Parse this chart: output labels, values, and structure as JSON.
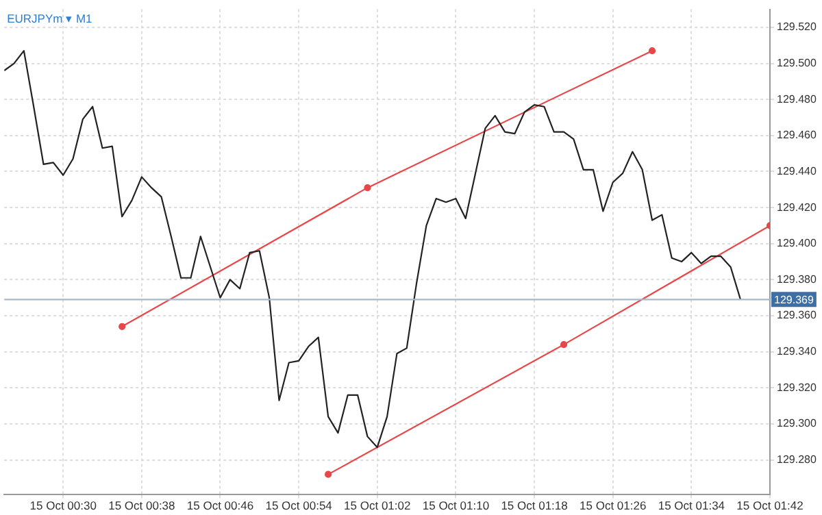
{
  "chart_data": {
    "type": "line",
    "title": "EURJPYm ▾ M1",
    "x": [
      "--10-15T00:24",
      "--10-15T00:25",
      "--10-15T00:26",
      "--10-15T00:27",
      "--10-15T00:28",
      "--10-15T00:29",
      "--10-15T00:30",
      "--10-15T00:31",
      "--10-15T00:32",
      "--10-15T00:33",
      "--10-15T00:34",
      "--10-15T00:35",
      "--10-15T00:36",
      "--10-15T00:37",
      "--10-15T00:38",
      "--10-15T00:39",
      "--10-15T00:40",
      "--10-15T00:41",
      "--10-15T00:42",
      "--10-15T00:43",
      "--10-15T00:44",
      "--10-15T00:45",
      "--10-15T00:46",
      "--10-15T00:47",
      "--10-15T00:48",
      "--10-15T00:49",
      "--10-15T00:50",
      "--10-15T00:51",
      "--10-15T00:52",
      "--10-15T00:53",
      "--10-15T00:54",
      "--10-15T00:55",
      "--10-15T00:56",
      "--10-15T00:57",
      "--10-15T00:58",
      "--10-15T00:59",
      "--10-15T01:00",
      "--10-15T01:01",
      "--10-15T01:02",
      "--10-15T01:03",
      "--10-15T01:04",
      "--10-15T01:05",
      "--10-15T01:06",
      "--10-15T01:07",
      "--10-15T01:08",
      "--10-15T01:09",
      "--10-15T01:10",
      "--10-15T01:11",
      "--10-15T01:12",
      "--10-15T01:13",
      "--10-15T01:14",
      "--10-15T01:15",
      "--10-15T01:16",
      "--10-15T01:17",
      "--10-15T01:18",
      "--10-15T01:19",
      "--10-15T01:20",
      "--10-15T01:21",
      "--10-15T01:22",
      "--10-15T01:23",
      "--10-15T01:24",
      "--10-15T01:25",
      "--10-15T01:26",
      "--10-15T01:27",
      "--10-15T01:28",
      "--10-15T01:29",
      "--10-15T01:30",
      "--10-15T01:31",
      "--10-15T01:32",
      "--10-15T01:33",
      "--10-15T01:34",
      "--10-15T01:35",
      "--10-15T01:36",
      "--10-15T01:37",
      "--10-15T01:38",
      "--10-15T01:39"
    ],
    "series": [
      {
        "color": "#222222",
        "values": [
          129.496,
          129.5,
          129.507,
          129.476,
          129.444,
          129.445,
          129.438,
          129.447,
          129.469,
          129.476,
          129.453,
          129.454,
          129.415,
          129.424,
          129.437,
          129.431,
          129.426,
          129.404,
          129.381,
          129.381,
          129.404,
          129.387,
          129.37,
          129.38,
          129.375,
          129.395,
          129.396,
          129.37,
          129.313,
          129.334,
          129.335,
          129.343,
          129.348,
          129.304,
          129.295,
          129.316,
          129.316,
          129.293,
          129.287,
          129.304,
          129.339,
          129.342,
          129.378,
          129.41,
          129.425,
          129.423,
          129.425,
          129.414,
          129.439,
          129.464,
          129.471,
          129.462,
          129.461,
          129.473,
          129.477,
          129.476,
          129.462,
          129.462,
          129.458,
          129.441,
          129.441,
          129.418,
          129.434,
          129.439,
          129.451,
          129.441,
          129.413,
          129.416,
          129.392,
          129.39,
          129.395,
          129.389,
          129.393,
          129.393,
          129.387,
          129.369
        ]
      },
      {
        "color": "#e8474a",
        "x": [
          "--10-15T00:36",
          "--10-15T01:01",
          "--10-15T01:30"
        ],
        "values": [
          129.354,
          129.431,
          129.507
        ],
        "marker": "circle"
      },
      {
        "color": "#e8474a",
        "x": [
          "--10-15T00:57",
          "--10-15T01:21",
          "--10-15T01:42"
        ],
        "values": [
          129.272,
          129.344,
          129.41
        ],
        "marker": "circle"
      }
    ],
    "xlim": [
      "--10-15T00:24",
      "--10-15T01:42"
    ],
    "xticks": [
      {
        "value": "--10-15T00:30",
        "label": "15 Oct 00:30"
      },
      {
        "value": "--10-15T00:38",
        "label": "15 Oct 00:38"
      },
      {
        "value": "--10-15T00:46",
        "label": "15 Oct 00:46"
      },
      {
        "value": "--10-15T00:54",
        "label": "15 Oct 00:54"
      },
      {
        "value": "--10-15T01:02",
        "label": "15 Oct 01:02"
      },
      {
        "value": "--10-15T01:10",
        "label": "15 Oct 01:10"
      },
      {
        "value": "--10-15T01:18",
        "label": "15 Oct 01:18"
      },
      {
        "value": "--10-15T01:26",
        "label": "15 Oct 01:26"
      },
      {
        "value": "--10-15T01:34",
        "label": "15 Oct 01:34"
      },
      {
        "value": "--10-15T01:42",
        "label": "15 Oct 01:42"
      }
    ],
    "ylim": [
      129.261,
      129.53
    ],
    "yticks": [
      {
        "value": 129.28,
        "label": "129.280"
      },
      {
        "value": 129.3,
        "label": "129.300"
      },
      {
        "value": 129.32,
        "label": "129.320"
      },
      {
        "value": 129.34,
        "label": "129.340"
      },
      {
        "value": 129.36,
        "label": "129.360"
      },
      {
        "value": 129.38,
        "label": "129.380"
      },
      {
        "value": 129.4,
        "label": "129.400"
      },
      {
        "value": 129.42,
        "label": "129.420"
      },
      {
        "value": 129.44,
        "label": "129.440"
      },
      {
        "value": 129.46,
        "label": "129.460"
      },
      {
        "value": 129.48,
        "label": "129.480"
      },
      {
        "value": 129.5,
        "label": "129.500"
      },
      {
        "value": 129.52,
        "label": "129.520"
      }
    ],
    "ref_lines": [
      {
        "axis": "y",
        "value": 129.369,
        "label": "129.369",
        "color": "#a9b8c8"
      }
    ],
    "grid": true,
    "legend": false,
    "marker": "none",
    "line_style": "solid"
  }
}
